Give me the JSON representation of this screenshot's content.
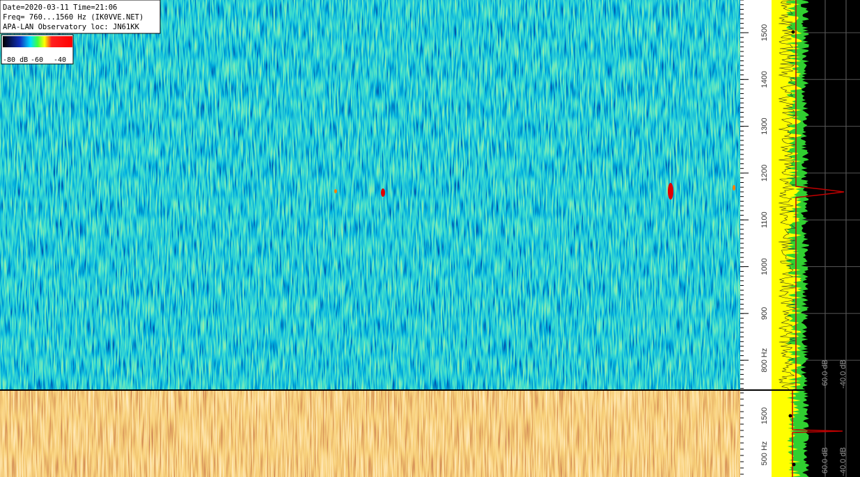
{
  "header": {
    "lines": [
      "Date=2020-03-11 Time=21:06",
      "Freq= 760...1560 Hz (IK0VVE.NET)",
      "APA-LAN Observatory loc: JN61KK"
    ]
  },
  "colorbar": {
    "labels": [
      "-80 dB",
      "-60",
      "-40"
    ]
  },
  "main_axis": {
    "labels": [
      "1500",
      "1400",
      "1300",
      "1200",
      "1100",
      "1000",
      "900",
      "800 Hz"
    ]
  },
  "main_spectrum": {
    "labels": [
      "-60.0 dB",
      "-40.0 dB"
    ]
  },
  "lower_axis": {
    "labels": [
      "1500",
      "500 Hz"
    ]
  },
  "lower_spectrum": {
    "labels": [
      "-60.0 dB",
      "-40.0 dB"
    ]
  }
}
